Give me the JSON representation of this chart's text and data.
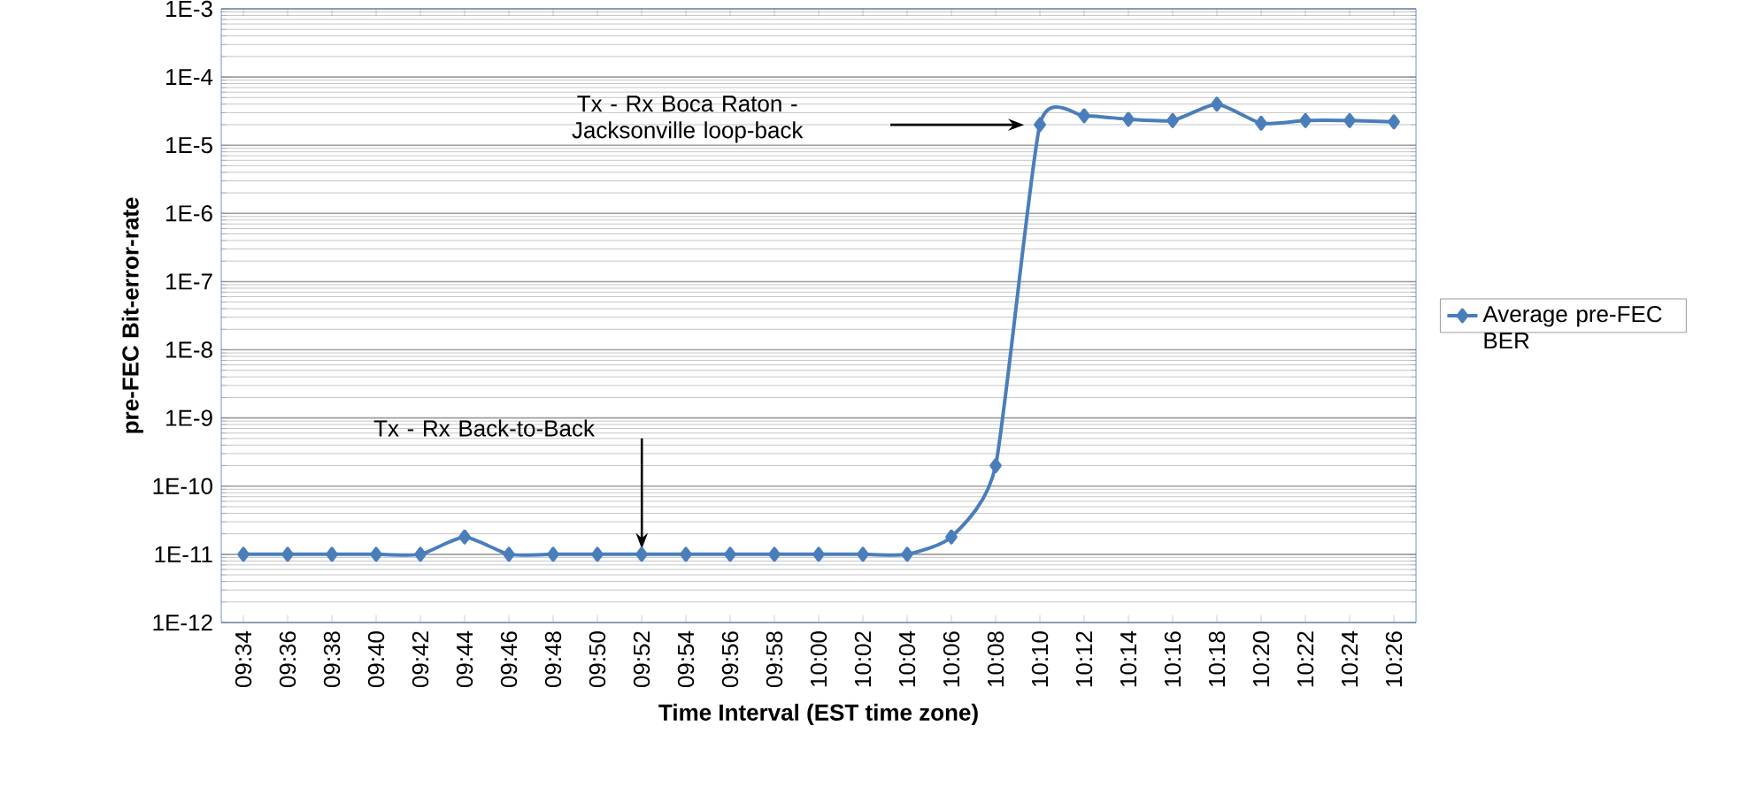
{
  "chart_data": {
    "type": "line",
    "xlabel": "Time Interval  (EST time zone)",
    "ylabel": "pre-FEC Bit-error-rate",
    "categories": [
      "09:34",
      "09:36",
      "09:38",
      "09:40",
      "09:42",
      "09:44",
      "09:46",
      "09:48",
      "09:50",
      "09:52",
      "09:54",
      "09:56",
      "09:58",
      "10:00",
      "10:02",
      "10:04",
      "10:06",
      "10:08",
      "10:10",
      "10:12",
      "10:14",
      "10:16",
      "10:18",
      "10:20",
      "10:22",
      "10:24",
      "10:26"
    ],
    "series": [
      {
        "name": "Average pre-FEC BER",
        "color": "#4a7ebb",
        "values": [
          1e-11,
          1e-11,
          1e-11,
          1e-11,
          1e-11,
          1.8e-11,
          1e-11,
          1e-11,
          1e-11,
          1e-11,
          1e-11,
          1e-11,
          1e-11,
          1e-11,
          1e-11,
          1e-11,
          1.8e-11,
          2e-10,
          2e-05,
          2.7e-05,
          2.4e-05,
          2.3e-05,
          4e-05,
          2.1e-05,
          2.3e-05,
          2.3e-05,
          2.2e-05
        ]
      }
    ],
    "log": "y",
    "ylim": [
      1e-12,
      0.001
    ],
    "yticks": [
      {
        "value": 1e-12,
        "label": "1E-12"
      },
      {
        "value": 1e-11,
        "label": "1E-11"
      },
      {
        "value": 1e-10,
        "label": "1E-10"
      },
      {
        "value": 1e-09,
        "label": "1E-9"
      },
      {
        "value": 1e-08,
        "label": "1E-8"
      },
      {
        "value": 1e-07,
        "label": "1E-7"
      },
      {
        "value": 1e-06,
        "label": "1E-6"
      },
      {
        "value": 1e-05,
        "label": "1E-5"
      },
      {
        "value": 0.0001,
        "label": "1E-4"
      },
      {
        "value": 0.001,
        "label": "1E-3"
      }
    ],
    "annotations": [
      "Tx - Rx Boca Raton - Jacksonville loop-back",
      "Tx - Rx Back-to-Back"
    ],
    "grid": "y",
    "legend": "right",
    "marker": "diamond",
    "line_style": "solid"
  }
}
